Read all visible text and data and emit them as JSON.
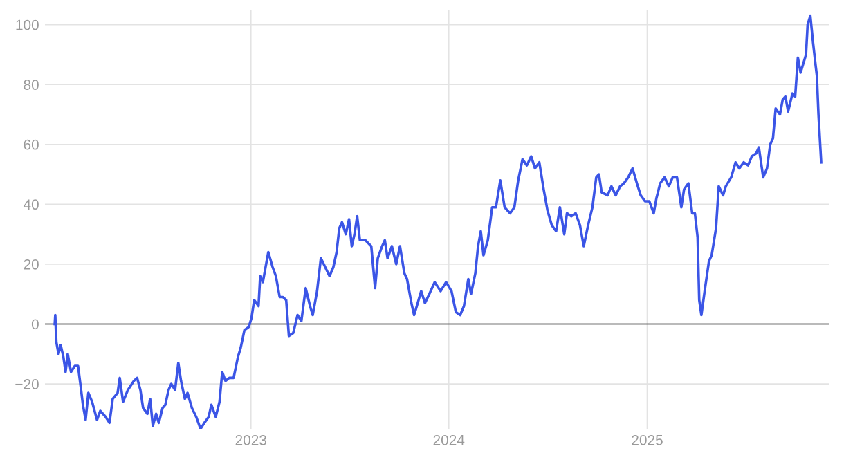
{
  "chart_data": {
    "type": "line",
    "x": [
      "2022-01-04",
      "2022-01-05",
      "2022-01-07",
      "2022-01-11",
      "2022-01-15",
      "2022-01-20",
      "2022-01-24",
      "2022-01-28",
      "2022-02-03",
      "2022-02-10",
      "2022-02-16",
      "2022-02-21",
      "2022-02-25",
      "2022-03-02",
      "2022-03-07",
      "2022-03-14",
      "2022-03-23",
      "2022-03-29",
      "2022-04-08",
      "2022-04-15",
      "2022-04-21",
      "2022-04-30",
      "2022-05-04",
      "2022-05-10",
      "2022-05-19",
      "2022-05-30",
      "2022-06-05",
      "2022-06-11",
      "2022-06-16",
      "2022-06-24",
      "2022-06-29",
      "2022-07-04",
      "2022-07-10",
      "2022-07-15",
      "2022-07-22",
      "2022-07-27",
      "2022-08-02",
      "2022-08-07",
      "2022-08-14",
      "2022-08-20",
      "2022-08-25",
      "2022-09-01",
      "2022-09-06",
      "2022-09-14",
      "2022-09-22",
      "2022-09-30",
      "2022-10-07",
      "2022-10-15",
      "2022-10-20",
      "2022-10-28",
      "2022-11-04",
      "2022-11-09",
      "2022-11-15",
      "2022-11-22",
      "2022-11-30",
      "2022-12-08",
      "2022-12-13",
      "2022-12-20",
      "2022-12-28",
      "2023-01-02",
      "2023-01-07",
      "2023-01-15",
      "2023-01-18",
      "2023-01-23",
      "2023-01-28",
      "2023-02-02",
      "2023-02-10",
      "2023-02-16",
      "2023-02-23",
      "2023-03-01",
      "2023-03-07",
      "2023-03-12",
      "2023-03-20",
      "2023-03-28",
      "2023-04-04",
      "2023-04-12",
      "2023-04-20",
      "2023-04-25",
      "2023-05-03",
      "2023-05-10",
      "2023-05-18",
      "2023-05-26",
      "2023-06-02",
      "2023-06-08",
      "2023-06-13",
      "2023-06-18",
      "2023-06-25",
      "2023-07-01",
      "2023-07-06",
      "2023-07-11",
      "2023-07-16",
      "2023-07-21",
      "2023-07-31",
      "2023-08-11",
      "2023-08-16",
      "2023-08-18",
      "2023-08-23",
      "2023-08-31",
      "2023-09-05",
      "2023-09-10",
      "2023-09-18",
      "2023-09-26",
      "2023-10-03",
      "2023-10-11",
      "2023-10-16",
      "2023-10-24",
      "2023-10-29",
      "2023-11-03",
      "2023-11-11",
      "2023-11-18",
      "2023-11-26",
      "2023-12-06",
      "2023-12-17",
      "2023-12-27",
      "2024-01-06",
      "2024-01-14",
      "2024-01-22",
      "2024-01-29",
      "2024-02-06",
      "2024-02-11",
      "2024-02-19",
      "2024-02-24",
      "2024-02-29",
      "2024-03-05",
      "2024-03-13",
      "2024-03-21",
      "2024-03-28",
      "2024-04-05",
      "2024-04-13",
      "2024-04-23",
      "2024-05-01",
      "2024-05-08",
      "2024-05-16",
      "2024-05-24",
      "2024-06-01",
      "2024-06-08",
      "2024-06-16",
      "2024-06-24",
      "2024-07-01",
      "2024-07-09",
      "2024-07-17",
      "2024-07-24",
      "2024-08-01",
      "2024-08-06",
      "2024-08-14",
      "2024-08-22",
      "2024-08-30",
      "2024-09-06",
      "2024-09-14",
      "2024-09-22",
      "2024-09-29",
      "2024-10-04",
      "2024-10-09",
      "2024-10-20",
      "2024-10-27",
      "2024-11-04",
      "2024-11-12",
      "2024-11-19",
      "2024-11-27",
      "2024-12-05",
      "2024-12-13",
      "2024-12-20",
      "2024-12-28",
      "2025-01-05",
      "2025-01-13",
      "2025-01-18",
      "2025-01-25",
      "2025-02-02",
      "2025-02-10",
      "2025-02-17",
      "2025-02-25",
      "2025-03-05",
      "2025-03-10",
      "2025-03-18",
      "2025-03-25",
      "2025-03-30",
      "2025-04-04",
      "2025-04-07",
      "2025-04-11",
      "2025-04-17",
      "2025-04-25",
      "2025-04-30",
      "2025-05-08",
      "2025-05-13",
      "2025-05-21",
      "2025-05-26",
      "2025-06-05",
      "2025-06-13",
      "2025-06-20",
      "2025-06-28",
      "2025-07-06",
      "2025-07-13",
      "2025-07-21",
      "2025-07-26",
      "2025-08-03",
      "2025-08-10",
      "2025-08-16",
      "2025-08-21",
      "2025-08-26",
      "2025-09-03",
      "2025-09-08",
      "2025-09-13",
      "2025-09-18",
      "2025-09-26",
      "2025-10-01",
      "2025-10-06",
      "2025-10-11",
      "2025-10-16",
      "2025-10-21",
      "2025-10-24",
      "2025-10-29",
      "2025-11-03",
      "2025-11-08",
      "2025-11-10",
      "2025-11-13",
      "2025-11-18"
    ],
    "series": [
      {
        "color": "#3b55e6",
        "values": [
          0,
          3,
          -6,
          -10,
          -7,
          -11,
          -16,
          -10,
          -16,
          -14,
          -14,
          -21,
          -27,
          -32,
          -23,
          -26,
          -32,
          -29,
          -31,
          -33,
          -25,
          -23,
          -18,
          -26,
          -22,
          -19,
          -18,
          -22,
          -28,
          -30,
          -25,
          -34,
          -30,
          -33,
          -28,
          -27,
          -22,
          -20,
          -22,
          -13,
          -19,
          -25,
          -23,
          -28,
          -31,
          -35,
          -33,
          -31,
          -27,
          -31,
          -26,
          -16,
          -19,
          -18,
          -18,
          -11,
          -8,
          -2,
          -1,
          2,
          8,
          6,
          16,
          14,
          19,
          24,
          19,
          16,
          9,
          9,
          8,
          -4,
          -3,
          3,
          1,
          12,
          6,
          3,
          11,
          22,
          19,
          16,
          19,
          24,
          32,
          34,
          30,
          35,
          26,
          30,
          36,
          28,
          28,
          26,
          16,
          12,
          22,
          26,
          28,
          22,
          26,
          20,
          26,
          17,
          15,
          7,
          3,
          6,
          11,
          7,
          10,
          14,
          11,
          14,
          11,
          4,
          3,
          6,
          15,
          10,
          17,
          26,
          31,
          23,
          28,
          39,
          39,
          48,
          39,
          37,
          39,
          48,
          55,
          53,
          56,
          52,
          54,
          45,
          38,
          33,
          31,
          39,
          30,
          37,
          36,
          37,
          33,
          26,
          33,
          39,
          49,
          50,
          44,
          43,
          46,
          43,
          46,
          47,
          49,
          52,
          47,
          43,
          41,
          41,
          37,
          42,
          47,
          49,
          46,
          49,
          49,
          39,
          45,
          47,
          37,
          37,
          29,
          8,
          3,
          11,
          21,
          23,
          32,
          46,
          43,
          46,
          49,
          54,
          52,
          54,
          53,
          56,
          57,
          59,
          49,
          52,
          60,
          62,
          72,
          70,
          75,
          76,
          71,
          77,
          76,
          89,
          84,
          87,
          90,
          100,
          103,
          94,
          86,
          83,
          70,
          54
        ]
      }
    ],
    "xlim": [
      "2021-12-17",
      "2025-12-02"
    ],
    "xticks": [
      {
        "value": "2023-01-01",
        "label": "2023"
      },
      {
        "value": "2024-01-01",
        "label": "2024"
      },
      {
        "value": "2025-01-01",
        "label": "2025"
      }
    ],
    "ylim": [
      -35,
      105
    ],
    "yticks": [
      -20,
      0,
      20,
      40,
      60,
      80,
      100
    ],
    "ref_lines": [
      {
        "axis": "y",
        "value": 0,
        "color": "#000000"
      }
    ],
    "grid": true,
    "marker": "none",
    "line_style": "solid"
  }
}
